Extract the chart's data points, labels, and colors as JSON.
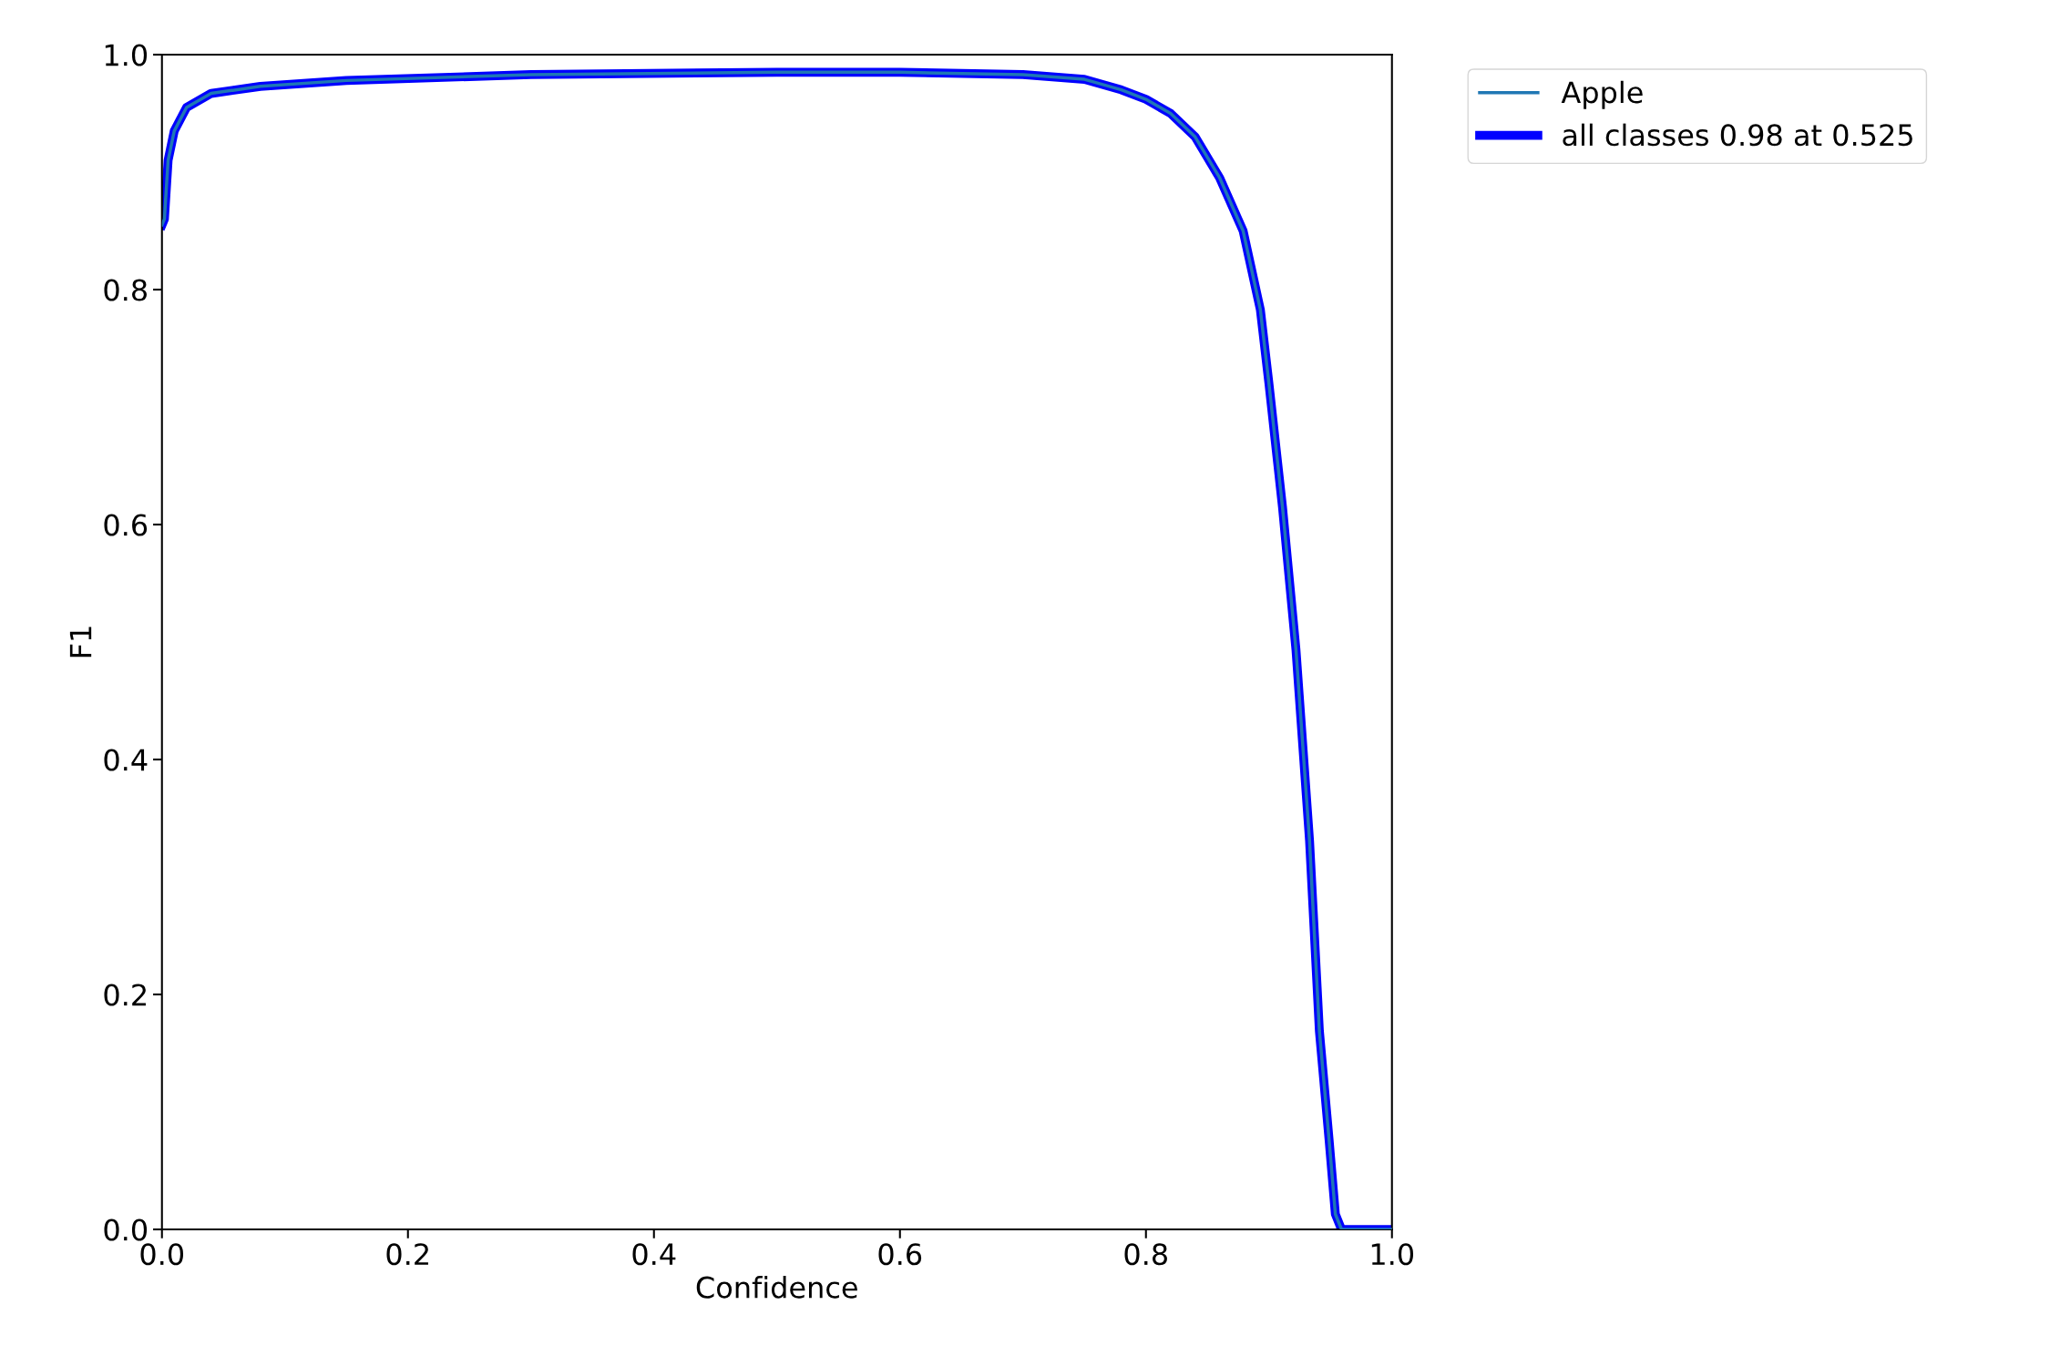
{
  "chart_data": {
    "type": "line",
    "xlabel": "Confidence",
    "ylabel": "F1",
    "xlim": [
      0.0,
      1.0
    ],
    "ylim": [
      0.0,
      1.0
    ],
    "xticks": [
      {
        "value": 0,
        "label": "0.0"
      },
      0.2,
      0.4,
      0.6,
      0.8,
      {
        "value": 1,
        "label": "1.0"
      }
    ],
    "yticks": [
      {
        "value": 0,
        "label": "0.0"
      },
      0.2,
      0.4,
      0.6,
      0.8,
      {
        "value": 1,
        "label": "1.0"
      }
    ],
    "legend": "top right",
    "grid": false,
    "marker": "none",
    "line_style": "solid",
    "x": [
      0.0,
      0.002,
      0.005,
      0.01,
      0.02,
      0.04,
      0.08,
      0.15,
      0.3,
      0.5,
      0.6,
      0.7,
      0.75,
      0.78,
      0.8,
      0.82,
      0.84,
      0.86,
      0.879,
      0.893,
      0.9,
      0.911,
      0.922,
      0.933,
      0.941,
      0.949,
      0.954,
      0.959,
      1.0
    ],
    "series": [
      {
        "name": "Apple",
        "color": "#1f77b4",
        "values": [
          0.855,
          0.86,
          0.91,
          0.935,
          0.955,
          0.967,
          0.973,
          0.978,
          0.983,
          0.985,
          0.985,
          0.983,
          0.979,
          0.97,
          0.962,
          0.95,
          0.93,
          0.895,
          0.85,
          0.783,
          0.72,
          0.615,
          0.493,
          0.331,
          0.169,
          0.075,
          0.013,
          0.0,
          0.0
        ]
      },
      {
        "name": "all classes 0.98 at 0.525",
        "color": "#0000ff",
        "values": [
          0.855,
          0.86,
          0.91,
          0.935,
          0.955,
          0.967,
          0.973,
          0.978,
          0.983,
          0.985,
          0.985,
          0.983,
          0.979,
          0.97,
          0.962,
          0.95,
          0.93,
          0.895,
          0.85,
          0.783,
          0.72,
          0.615,
          0.493,
          0.331,
          0.169,
          0.075,
          0.013,
          0.0,
          0.0
        ]
      }
    ]
  }
}
